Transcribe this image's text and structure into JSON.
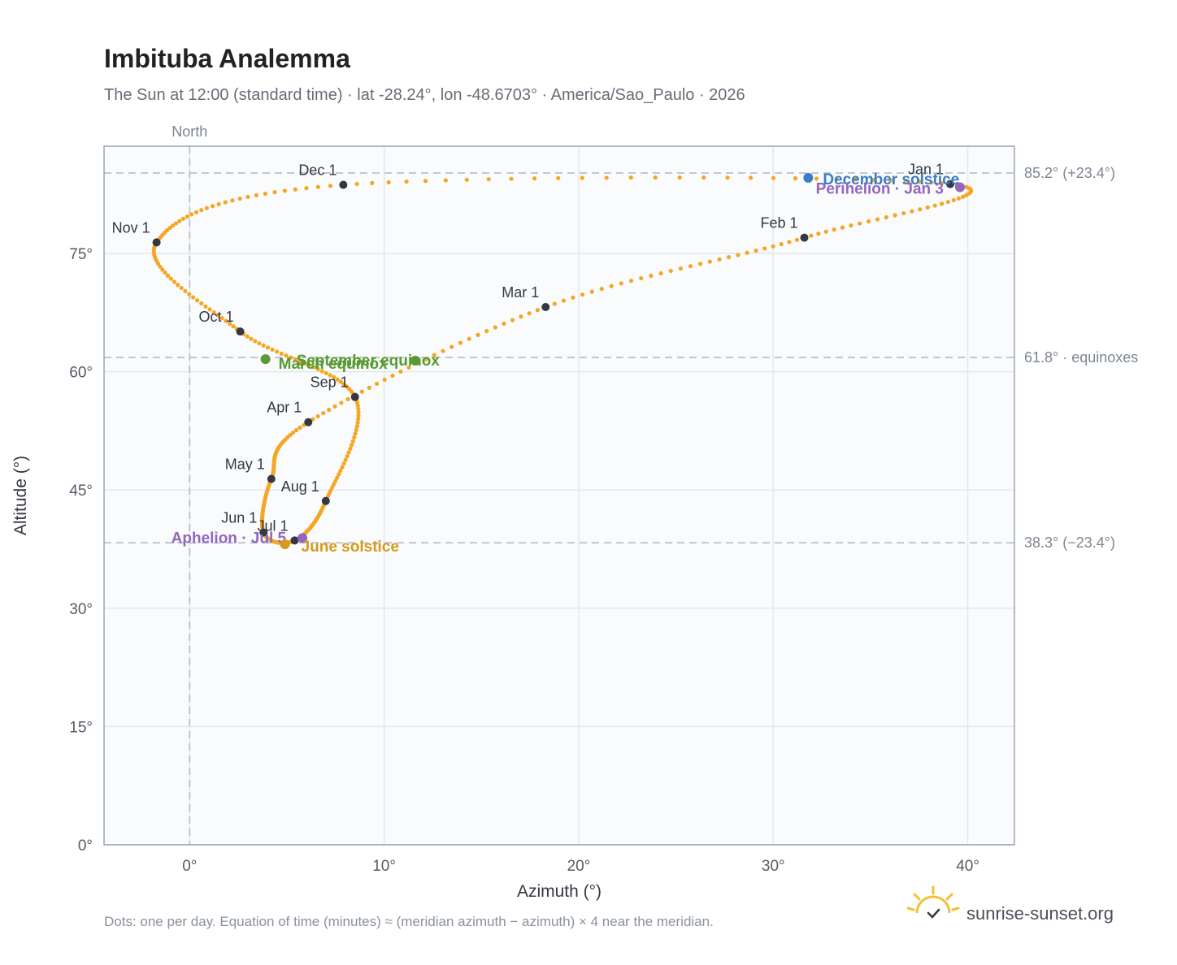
{
  "chart_data": {
    "type": "scatter",
    "title": "Imbituba Analemma",
    "subtitle": "The Sun at 12:00 (standard time) · lat -28.24°, lon -48.6703° · America/Sao_Paulo · 2026",
    "xlabel": "Azimuth (°)",
    "ylabel": "Altitude (°)",
    "xlim": [
      -4.4,
      42.4
    ],
    "ylim": [
      0,
      88.6
    ],
    "x_ticks": [
      {
        "value": 0,
        "label": "0°"
      },
      {
        "value": 10,
        "label": "10°"
      },
      {
        "value": 20,
        "label": "20°"
      },
      {
        "value": 30,
        "label": "30°"
      },
      {
        "value": 40,
        "label": "40°"
      }
    ],
    "y_ticks": [
      {
        "value": 0,
        "label": "0°"
      },
      {
        "value": 15,
        "label": "15°"
      },
      {
        "value": 30,
        "label": "30°"
      },
      {
        "value": 45,
        "label": "45°"
      },
      {
        "value": 60,
        "label": "60°"
      },
      {
        "value": 75,
        "label": "75°"
      }
    ],
    "grid": true,
    "meridian": {
      "x": 0,
      "label": "North"
    },
    "reference_lines": [
      {
        "y": 85.2,
        "label": "85.2° (+23.4°)"
      },
      {
        "y": 61.8,
        "label": "61.8° · equinoxes"
      },
      {
        "y": 38.3,
        "label": "38.3° (−23.4°)"
      }
    ],
    "daily_color": "#f5a623",
    "month_markers": [
      {
        "label": "Jan 1",
        "x": 39.1,
        "y": 83.8
      },
      {
        "label": "Feb 1",
        "x": 31.6,
        "y": 77.0
      },
      {
        "label": "Mar 1",
        "x": 18.3,
        "y": 68.2
      },
      {
        "label": "Apr 1",
        "x": 6.1,
        "y": 53.6
      },
      {
        "label": "May 1",
        "x": 4.2,
        "y": 46.4
      },
      {
        "label": "Jun 1",
        "x": 3.8,
        "y": 39.6
      },
      {
        "label": "Jul 1",
        "x": 5.4,
        "y": 38.6
      },
      {
        "label": "Aug 1",
        "x": 7.0,
        "y": 43.6
      },
      {
        "label": "Sep 1",
        "x": 8.5,
        "y": 56.8
      },
      {
        "label": "Oct 1",
        "x": 2.6,
        "y": 65.1
      },
      {
        "label": "Nov 1",
        "x": -1.7,
        "y": 76.4
      },
      {
        "label": "Dec 1",
        "x": 7.9,
        "y": 83.7
      }
    ],
    "events": [
      {
        "label": "December solstice",
        "x": 31.8,
        "y": 84.6,
        "color": "#3b7dc4"
      },
      {
        "label": "Perihelion · Jan 3",
        "x": 39.6,
        "y": 83.4,
        "color": "#9467bd"
      },
      {
        "label": "September equinox",
        "x": 11.6,
        "y": 61.4,
        "color": "#5a9a32"
      },
      {
        "label": "March equinox",
        "x": 3.9,
        "y": 61.6,
        "color": "#5a9a32"
      },
      {
        "label": "Aphelion · Jul 5",
        "x": 5.8,
        "y": 38.9,
        "color": "#9467bd"
      },
      {
        "label": "June solstice",
        "x": 4.9,
        "y": 38.1,
        "color": "#d69a1c"
      }
    ],
    "footnote": "Dots: one per day. Equation of time (minutes) ≈ (meridian azimuth − azimuth) × 4 near the meridian."
  },
  "brand": {
    "name": "sunrise-sunset.org",
    "icon": "sun-icon"
  }
}
